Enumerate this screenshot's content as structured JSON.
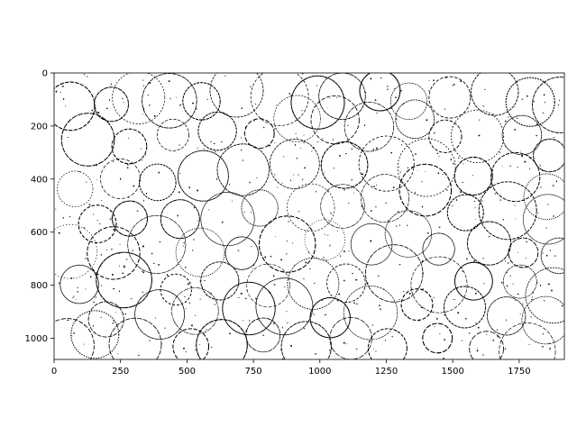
{
  "image": {
    "kind": "edge-map",
    "description_colors": {
      "background": "#ffffff",
      "edges": "#000000"
    },
    "x_range": [
      0,
      1920
    ],
    "y_range": [
      0,
      1080
    ],
    "y_inverted": true
  },
  "axes": {
    "x_ticks": [
      {
        "value": 0,
        "label": "0"
      },
      {
        "value": 250,
        "label": "250"
      },
      {
        "value": 500,
        "label": "500"
      },
      {
        "value": 750,
        "label": "750"
      },
      {
        "value": 1000,
        "label": "1000"
      },
      {
        "value": 1250,
        "label": "1250"
      },
      {
        "value": 1500,
        "label": "1500"
      },
      {
        "value": 1750,
        "label": "1750"
      }
    ],
    "y_ticks": [
      {
        "value": 0,
        "label": "0"
      },
      {
        "value": 200,
        "label": "200"
      },
      {
        "value": 400,
        "label": "400"
      },
      {
        "value": 600,
        "label": "600"
      },
      {
        "value": 800,
        "label": "800"
      },
      {
        "value": 1000,
        "label": "1000"
      }
    ]
  }
}
